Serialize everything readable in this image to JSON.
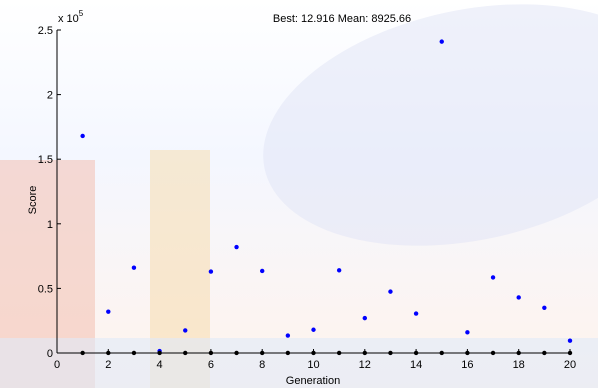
{
  "chart_data": {
    "type": "scatter",
    "title": "Best: 12.916 Mean: 8925.66",
    "xlabel": "Generation",
    "ylabel": "Score",
    "y_multiplier_label": "x 10",
    "y_multiplier_exponent": "5",
    "xlim": [
      0,
      20
    ],
    "ylim": [
      0,
      250000
    ],
    "x_ticks": [
      0,
      2,
      4,
      6,
      8,
      10,
      12,
      14,
      16,
      18,
      20
    ],
    "y_ticks": [
      0,
      50000,
      100000,
      150000,
      200000,
      250000
    ],
    "y_tick_labels": [
      "0",
      "0.5",
      "1",
      "1.5",
      "2",
      "2.5"
    ],
    "grid": false,
    "series": [
      {
        "color": "#0000ff",
        "x": [
          1,
          2,
          3,
          4,
          5,
          6,
          7,
          8,
          9,
          10,
          11,
          12,
          13,
          14,
          15,
          16,
          17,
          18,
          19,
          20
        ],
        "values": [
          168000,
          32000,
          66000,
          1500,
          17500,
          63000,
          82000,
          63500,
          13500,
          18000,
          64000,
          27000,
          47500,
          30500,
          241000,
          16000,
          58500,
          43000,
          35000,
          9500
        ]
      },
      {
        "color": "#000000",
        "x": [
          1,
          2,
          3,
          4,
          5,
          6,
          7,
          8,
          9,
          10,
          11,
          12,
          13,
          14,
          15,
          16,
          17,
          18,
          19,
          20
        ],
        "values": [
          13,
          13,
          13,
          13,
          13,
          13,
          13,
          13,
          13,
          13,
          13,
          13,
          13,
          13,
          13,
          13,
          13,
          13,
          13,
          13
        ]
      }
    ]
  }
}
